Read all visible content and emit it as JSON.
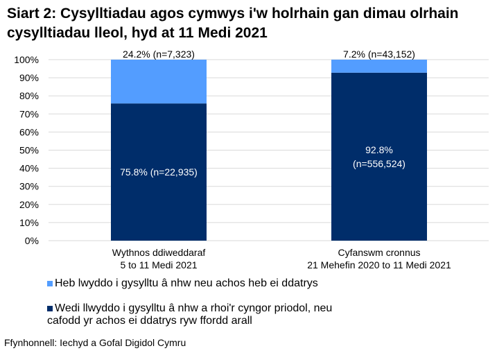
{
  "chart_data": {
    "type": "bar",
    "stacked": true,
    "title": "Siart 2: Cysylltiadau agos cymwys i'w holrhain gan dimau olrhain cysylltiadau lleol, hyd at 11 Medi 2021",
    "categories": [
      [
        "Wythnos ddiweddaraf",
        "5 to 11 Medi 2021"
      ],
      [
        "Cyfanswm cronnus",
        "21 Mehefin 2020 to 11 Medi 2021"
      ]
    ],
    "series": [
      {
        "name": "Wedi llwyddo i gysylltu â nhw a rhoi'r cyngor priodol, neu cafodd yr achos ei ddatrys ryw ffordd arall",
        "values": [
          75.8,
          92.8
        ],
        "labels": [
          [
            "75.8% (n=22,935)"
          ],
          [
            "92.8%",
            "(n=556,524)"
          ]
        ],
        "color": "#002D6A"
      },
      {
        "name": "Heb lwyddo i gysylltu â nhw neu achos heb ei ddatrys",
        "values": [
          24.2,
          7.2
        ],
        "labels": [
          [
            "24.2% (n=7,323)"
          ],
          [
            "7.2% (n=43,152)"
          ]
        ],
        "color": "#539DFF"
      }
    ],
    "ylim": [
      0,
      100
    ],
    "yticks": [
      "0%",
      "10%",
      "20%",
      "30%",
      "40%",
      "50%",
      "60%",
      "70%",
      "80%",
      "90%",
      "100%"
    ],
    "grid": true,
    "legend_position": "bottom",
    "gridline_color": "#D9D9D9"
  },
  "source": "Ffynhonnell: Iechyd a Gofal Digidol Cymru"
}
